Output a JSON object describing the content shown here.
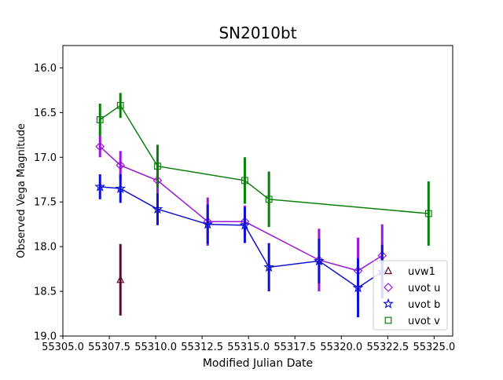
{
  "chart_data": {
    "type": "scatter",
    "title": "SN2010bt",
    "xlabel": "Modified Julian Date",
    "ylabel": "Observed Vega Magnitude",
    "xlim": [
      55305.0,
      55326.0
    ],
    "ylim": [
      19.0,
      15.75
    ],
    "y_inverted": true,
    "grid": false,
    "legend_position": "lower right",
    "x_ticks": [
      {
        "value": 55305.0,
        "label": "55305.0"
      },
      {
        "value": 55307.5,
        "label": "55307.5"
      },
      {
        "value": 55310.0,
        "label": "55310.0"
      },
      {
        "value": 55312.5,
        "label": "55312.5"
      },
      {
        "value": 55315.0,
        "label": "55315.0"
      },
      {
        "value": 55317.5,
        "label": "55317.5"
      },
      {
        "value": 55320.0,
        "label": "55320.0"
      },
      {
        "value": 55322.5,
        "label": "55322.5"
      },
      {
        "value": 55325.0,
        "label": "55325.0"
      }
    ],
    "y_ticks": [
      {
        "value": 16.0,
        "label": "16.0"
      },
      {
        "value": 16.5,
        "label": "16.5"
      },
      {
        "value": 17.0,
        "label": "17.0"
      },
      {
        "value": 17.5,
        "label": "17.5"
      },
      {
        "value": 18.0,
        "label": "18.0"
      },
      {
        "value": 18.5,
        "label": "18.5"
      },
      {
        "value": 19.0,
        "label": "19.0"
      }
    ],
    "series": [
      {
        "name": "uvw1",
        "marker": "triangle",
        "color": "#5a0c2e",
        "line": false,
        "points": [
          {
            "x": 55308.1,
            "y": 18.37,
            "err": 0.4
          }
        ]
      },
      {
        "name": "uvot u",
        "marker": "diamond",
        "color": "#9a17d6",
        "line": true,
        "points": [
          {
            "x": 55307.0,
            "y": 16.88,
            "err": 0.12
          },
          {
            "x": 55308.1,
            "y": 17.09,
            "err": 0.16
          },
          {
            "x": 55310.1,
            "y": 17.26,
            "err": 0.14
          },
          {
            "x": 55312.8,
            "y": 17.72,
            "err": 0.27
          },
          {
            "x": 55314.8,
            "y": 17.72,
            "err": 0.18
          },
          {
            "x": 55318.8,
            "y": 18.15,
            "err": 0.35
          },
          {
            "x": 55320.9,
            "y": 18.27,
            "err": 0.37
          },
          {
            "x": 55322.2,
            "y": 18.1,
            "err": 0.35
          }
        ]
      },
      {
        "name": "uvot b",
        "marker": "star",
        "color": "#1010d0",
        "line": true,
        "points": [
          {
            "x": 55307.0,
            "y": 17.33,
            "err": 0.14
          },
          {
            "x": 55308.1,
            "y": 17.35,
            "err": 0.16
          },
          {
            "x": 55310.1,
            "y": 17.58,
            "err": 0.18
          },
          {
            "x": 55312.8,
            "y": 17.75,
            "err": 0.22
          },
          {
            "x": 55314.8,
            "y": 17.76,
            "err": 0.2
          },
          {
            "x": 55316.1,
            "y": 18.23,
            "err": 0.27
          },
          {
            "x": 55318.8,
            "y": 18.16,
            "err": 0.25
          },
          {
            "x": 55320.9,
            "y": 18.46,
            "err": 0.33
          },
          {
            "x": 55322.2,
            "y": 18.28,
            "err": 0.3
          }
        ]
      },
      {
        "name": "uvot v",
        "marker": "square",
        "color": "#0a7f0a",
        "line": true,
        "points": [
          {
            "x": 55307.0,
            "y": 16.58,
            "err": 0.18
          },
          {
            "x": 55308.1,
            "y": 16.42,
            "err": 0.14
          },
          {
            "x": 55310.1,
            "y": 17.1,
            "err": 0.24
          },
          {
            "x": 55314.8,
            "y": 17.26,
            "err": 0.26
          },
          {
            "x": 55316.1,
            "y": 17.47,
            "err": 0.31
          },
          {
            "x": 55324.7,
            "y": 17.63,
            "err": 0.36
          }
        ]
      }
    ]
  }
}
